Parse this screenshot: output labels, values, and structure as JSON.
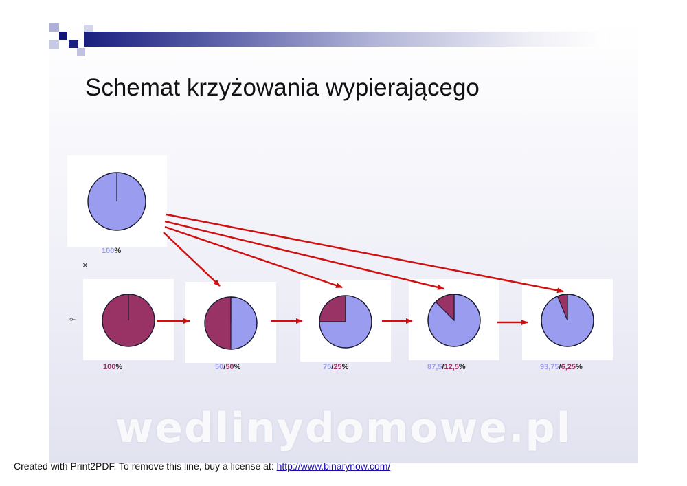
{
  "title": "Schemat krzyżowania wypierającego",
  "colors": {
    "blue": "#9a9cf0",
    "red": "#993366",
    "arrow": "#d01010"
  },
  "cross_symbol": "×",
  "female_symbol": "♀",
  "top_pie": {
    "blue_fraction": 1.0,
    "label_value": "100",
    "label_suffix": "%"
  },
  "generations": [
    {
      "blue_fraction": 0.0,
      "label_parts": [
        {
          "text": "100",
          "color": "red"
        },
        {
          "text": "%",
          "color": "dark"
        }
      ]
    },
    {
      "blue_fraction": 0.5,
      "label_parts": [
        {
          "text": "50",
          "color": "blue"
        },
        {
          "text": "/",
          "color": "dark"
        },
        {
          "text": "50",
          "color": "red"
        },
        {
          "text": "%",
          "color": "dark"
        }
      ]
    },
    {
      "blue_fraction": 0.75,
      "label_parts": [
        {
          "text": "75",
          "color": "blue"
        },
        {
          "text": "/",
          "color": "dark"
        },
        {
          "text": "25",
          "color": "red"
        },
        {
          "text": "%",
          "color": "dark"
        }
      ]
    },
    {
      "blue_fraction": 0.875,
      "label_parts": [
        {
          "text": "87,5",
          "color": "blue"
        },
        {
          "text": "/",
          "color": "dark"
        },
        {
          "text": "12,5",
          "color": "red"
        },
        {
          "text": "%",
          "color": "dark"
        }
      ]
    },
    {
      "blue_fraction": 0.9375,
      "label_parts": [
        {
          "text": "93,75",
          "color": "blue"
        },
        {
          "text": "/",
          "color": "dark"
        },
        {
          "text": "6,25",
          "color": "red"
        },
        {
          "text": "%",
          "color": "dark"
        }
      ]
    }
  ],
  "watermark": "wedlinydomowe.pl",
  "footer": {
    "text": "Created with Print2PDF. To remove this line, buy a license at: ",
    "link": "http://www.binarynow.com/"
  }
}
